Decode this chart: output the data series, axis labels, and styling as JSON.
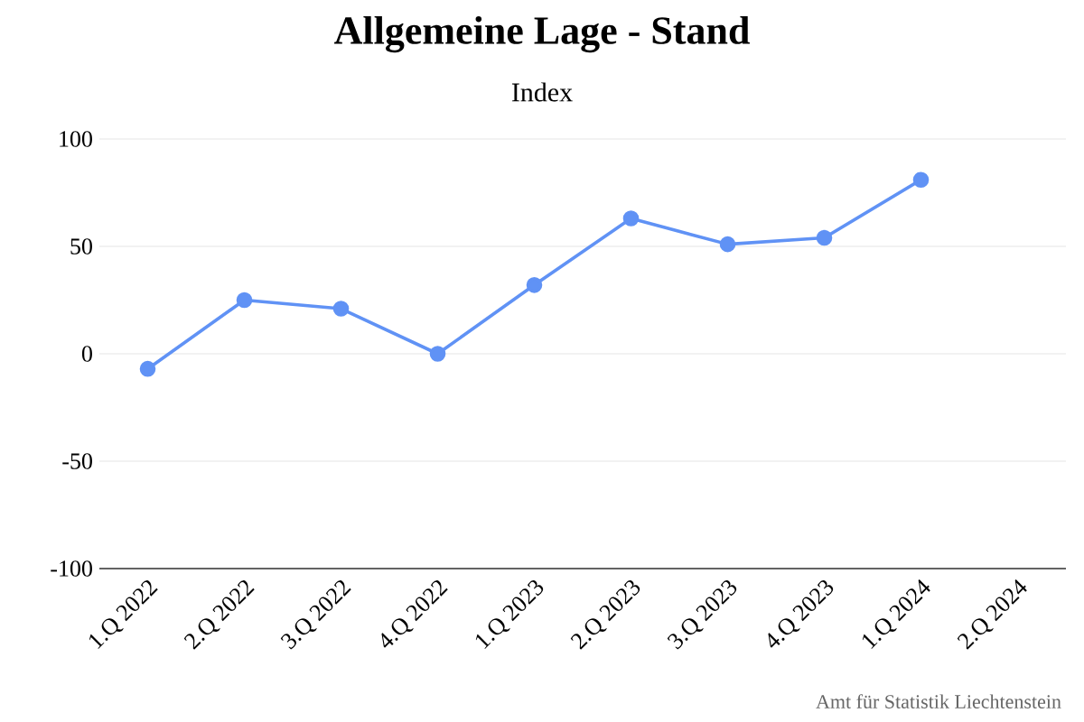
{
  "chart_data": {
    "type": "line",
    "title": "Allgemeine Lage - Stand",
    "subtitle": "Index",
    "categories": [
      "1.Q 2022",
      "2.Q 2022",
      "3.Q 2022",
      "4.Q 2022",
      "1.Q 2023",
      "2.Q 2023",
      "3.Q 2023",
      "4.Q 2023",
      "1.Q 2024",
      "2.Q 2024"
    ],
    "values": [
      -7,
      25,
      21,
      0,
      32,
      63,
      51,
      54,
      81,
      null
    ],
    "color": "#6092f5",
    "marker": "circle",
    "line_style": "solid",
    "grid": "y",
    "ylim": [
      -100,
      100
    ],
    "yticks": [
      -100,
      -50,
      0,
      50,
      100
    ],
    "annotations": [
      "Amt für Statistik Liechtenstein"
    ]
  }
}
